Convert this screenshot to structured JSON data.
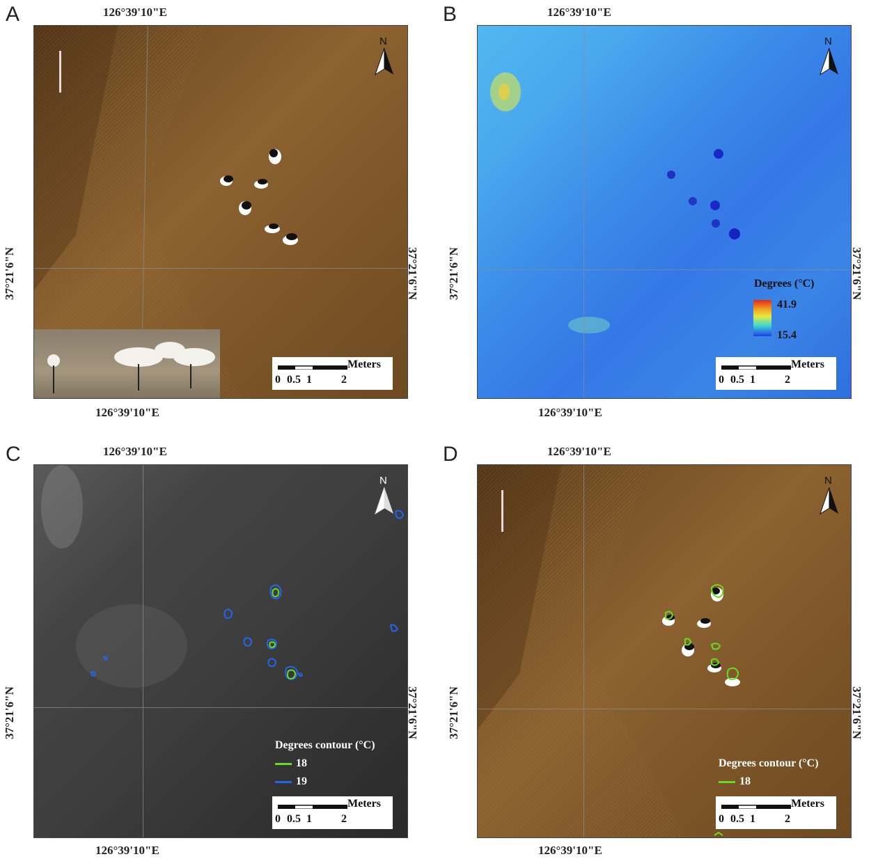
{
  "panels": [
    {
      "letter": "A",
      "top_coord": "126°39'10\"E",
      "bottom_coord": "126°39'10\"E",
      "left_coord": "37°21'6\"N",
      "right_coord": "37°21'6\"N"
    },
    {
      "letter": "B",
      "top_coord": "126°39'10\"E",
      "bottom_coord": "126°39'10\"E",
      "left_coord": "37°21'6\"N",
      "right_coord": "37°21'6\"N"
    },
    {
      "letter": "C",
      "top_coord": "126°39'10\"E",
      "bottom_coord": "126°39'10\"E",
      "left_coord": "37°21'6\"N",
      "right_coord": "37°21'6\"N"
    },
    {
      "letter": "D",
      "top_coord": "126°39'10\"E",
      "bottom_coord": "126°39'10\"E",
      "left_coord": "37°21'6\"N",
      "right_coord": "37°21'6\"N"
    }
  ],
  "scalebar": {
    "units": "Meters",
    "ticks": [
      "0",
      "0.5",
      "1",
      "2"
    ]
  },
  "north_label": "N",
  "legend_b": {
    "title": "Degrees (°C)",
    "max": "41.9",
    "min": "15.4"
  },
  "legend_c": {
    "title": "Degrees contour (°C)",
    "items": [
      {
        "label": "18",
        "color": "#66dd22"
      },
      {
        "label": "19",
        "color": "#2266ee"
      }
    ]
  },
  "legend_d": {
    "title": "Degrees contour (°C)",
    "items": [
      {
        "label": "18",
        "color": "#66dd22"
      }
    ]
  },
  "colors": {
    "soil": "#7a5528",
    "thermal": "#3a8fe8",
    "gray": "#3a3a3a"
  }
}
